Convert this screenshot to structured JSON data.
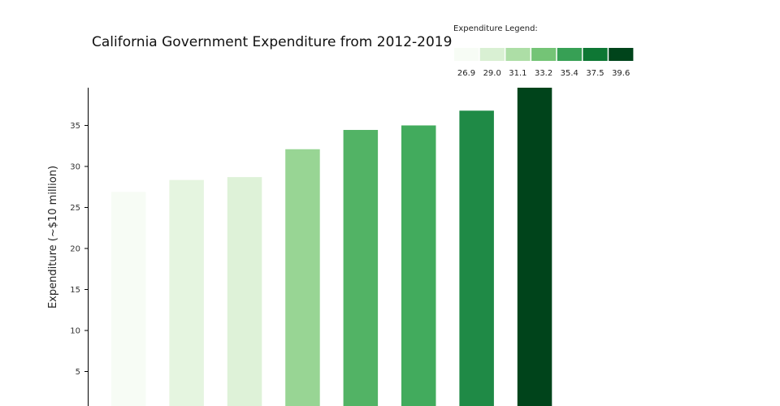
{
  "chart_data": {
    "type": "bar",
    "title": "California Government Expenditure from 2012-2019",
    "xlabel": "",
    "ylabel": "Expenditure (~$10 million)",
    "ylim": [
      0,
      39.6
    ],
    "yticks": [
      5,
      10,
      15,
      20,
      25,
      30,
      35
    ],
    "values": [
      26.9,
      28.35,
      28.7,
      32.1,
      34.45,
      35.0,
      36.8,
      39.6
    ],
    "bar_colors": [
      "#f7fcf5",
      "#e5f5e0",
      "#def2d8",
      "#98d594",
      "#52b365",
      "#42ab5d",
      "#1f8a46",
      "#00441b"
    ],
    "grid": false,
    "legend": {
      "title": "Expenditure Legend:",
      "placement": "top-right",
      "labels": [
        "26.9",
        "29.0",
        "31.1",
        "33.2",
        "35.4",
        "37.5",
        "39.6"
      ],
      "colors": [
        "#f7fcf5",
        "#d9f0d3",
        "#addea6",
        "#74c476",
        "#37a055",
        "#0e7734",
        "#00441b"
      ]
    }
  }
}
